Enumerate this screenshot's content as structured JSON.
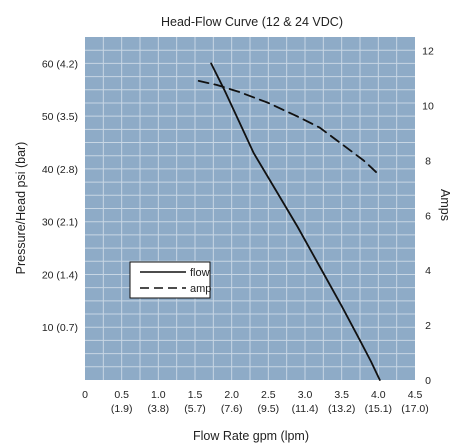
{
  "colors": {
    "plot_background": "#8eabc7",
    "grid": "#c7d6e4",
    "line": "#111111",
    "text": "#222222"
  },
  "chart_data": {
    "type": "line",
    "title": "Head-Flow Curve (12 & 24 VDC)",
    "xlabel": "Flow Rate gpm (lpm)",
    "ylabel": "Pressure/Head psi (bar)",
    "y2label": "Amps",
    "xlim": [
      0,
      4.5
    ],
    "ylim": [
      0,
      65
    ],
    "y2lim": [
      0,
      12.5
    ],
    "grid": true,
    "legend_position": "center-left",
    "x_ticks": [
      {
        "value": 0,
        "label": "0",
        "sub": ""
      },
      {
        "value": 0.5,
        "label": "0.5",
        "sub": "(1.9)"
      },
      {
        "value": 1.0,
        "label": "1.0",
        "sub": "(3.8)"
      },
      {
        "value": 1.5,
        "label": "1.5",
        "sub": "(5.7)"
      },
      {
        "value": 2.0,
        "label": "2.0",
        "sub": "(7.6)"
      },
      {
        "value": 2.5,
        "label": "2.5",
        "sub": "(9.5)"
      },
      {
        "value": 3.0,
        "label": "3.0",
        "sub": "(11.4)"
      },
      {
        "value": 3.5,
        "label": "3.5",
        "sub": "(13.2)"
      },
      {
        "value": 4.0,
        "label": "4.0",
        "sub": "(15.1)"
      },
      {
        "value": 4.5,
        "label": "4.5",
        "sub": "(17.0)"
      }
    ],
    "y_ticks": [
      {
        "value": 10,
        "label": "10 (0.7)"
      },
      {
        "value": 20,
        "label": "20 (1.4)"
      },
      {
        "value": 30,
        "label": "30 (2.1)"
      },
      {
        "value": 40,
        "label": "40 (2.8)"
      },
      {
        "value": 50,
        "label": "50 (3.5)"
      },
      {
        "value": 60,
        "label": "60 (4.2)"
      }
    ],
    "y2_ticks": [
      {
        "value": 0,
        "label": "0"
      },
      {
        "value": 2,
        "label": "2"
      },
      {
        "value": 4,
        "label": "4"
      },
      {
        "value": 6,
        "label": "6"
      },
      {
        "value": 8,
        "label": "8"
      },
      {
        "value": 10,
        "label": "10"
      },
      {
        "value": 12,
        "label": "12"
      }
    ],
    "series": [
      {
        "name": "flow",
        "axis": "left",
        "style": "solid",
        "points": [
          [
            1.72,
            60
          ],
          [
            1.9,
            55
          ],
          [
            2.1,
            49
          ],
          [
            2.3,
            43
          ],
          [
            2.6,
            36
          ],
          [
            2.9,
            29
          ],
          [
            3.2,
            21.5
          ],
          [
            3.5,
            14
          ],
          [
            3.75,
            7.5
          ],
          [
            3.9,
            3.5
          ],
          [
            4.02,
            0
          ]
        ]
      },
      {
        "name": "amp",
        "axis": "right",
        "style": "dashed",
        "points": [
          [
            1.55,
            10.9
          ],
          [
            1.8,
            10.75
          ],
          [
            2.1,
            10.5
          ],
          [
            2.5,
            10.1
          ],
          [
            2.9,
            9.6
          ],
          [
            3.2,
            9.2
          ],
          [
            3.5,
            8.6
          ],
          [
            3.8,
            8.0
          ],
          [
            3.98,
            7.55
          ]
        ]
      }
    ]
  }
}
